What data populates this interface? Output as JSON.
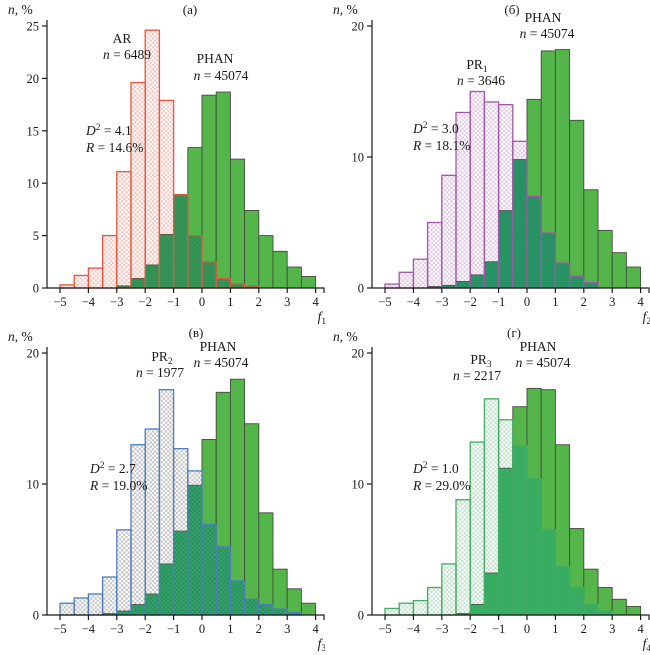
{
  "figure": {
    "background": "#ffffff"
  },
  "chart_data": [
    {
      "id": "a",
      "type": "bar",
      "panel_letter": "(a)",
      "xlabel": {
        "base": "f",
        "sub": "1"
      },
      "ylabel": {
        "italic": "n",
        "rest": ", %"
      },
      "ylim": [
        0,
        25
      ],
      "yticks": [
        0,
        5,
        10,
        15,
        20,
        25
      ],
      "xticks": [
        -5,
        -4,
        -3,
        -2,
        -1,
        0,
        1,
        2,
        3,
        4
      ],
      "bin_width": 0.5,
      "grid": false,
      "stats": {
        "d2": "4.1",
        "r": "14.6%"
      },
      "overlay": {
        "label": {
          "base": "AR",
          "sub": ""
        },
        "n": "6489",
        "border_color": "#e25740",
        "checker_color": "#e25740",
        "checker_opacity": 0.34,
        "x0": -5,
        "values": [
          0.3,
          1.2,
          1.9,
          5.0,
          11.1,
          19.6,
          24.6,
          17.9,
          8.9,
          5.0,
          2.5,
          0.9,
          0.4,
          0.2
        ]
      },
      "phan": {
        "label": "PHAN",
        "n": "45074",
        "fill": "#54b54a",
        "stroke": "#454d3c",
        "overlap_fill": "#109d58",
        "x0": -3,
        "values": [
          0.2,
          0.9,
          2.2,
          5.1,
          8.9,
          13.4,
          18.4,
          18.7,
          12.3,
          7.4,
          5.0,
          3.5,
          2.0,
          1.1
        ]
      },
      "pos": {
        "letter": [
          190,
          14
        ],
        "overlay_label": [
          [
            122,
            43
          ],
          [
            127,
            59
          ]
        ],
        "phan_label": [
          [
            215,
            63
          ],
          [
            221,
            80
          ]
        ],
        "stats": [
          [
            86,
            135
          ],
          [
            86,
            152
          ]
        ]
      }
    },
    {
      "id": "b",
      "type": "bar",
      "panel_letter": "(б)",
      "xlabel": {
        "base": "f",
        "sub": "2"
      },
      "ylabel": {
        "italic": "n",
        "rest": ", %"
      },
      "ylim": [
        0,
        20
      ],
      "yticks": [
        0,
        10,
        20
      ],
      "xticks": [
        -5,
        -4,
        -3,
        -2,
        -1,
        0,
        1,
        2,
        3,
        4
      ],
      "bin_width": 0.5,
      "grid": false,
      "stats": {
        "d2": "3.0",
        "r": "18.1%"
      },
      "overlay": {
        "label": {
          "base": "PR",
          "sub": "1"
        },
        "n": "3646",
        "border_color": "#a157a7",
        "checker_color": "#a157a7",
        "checker_opacity": 0.32,
        "x0": -5,
        "values": [
          0.3,
          1.2,
          2.2,
          5.0,
          8.6,
          13.4,
          15.0,
          14.2,
          14.0,
          11.2,
          7.0,
          4.2,
          1.9,
          0.9,
          0.4
        ]
      },
      "phan": {
        "label": "PHAN",
        "n": "45074",
        "fill": "#54b54a",
        "stroke": "#454d3c",
        "overlap_fill": "#109d58",
        "x0": -3.5,
        "values": [
          0.1,
          0.2,
          0.5,
          1.0,
          2.0,
          5.9,
          9.8,
          14.4,
          18.1,
          18.2,
          12.8,
          7.5,
          4.4,
          2.7,
          1.6
        ]
      },
      "pos": {
        "letter": [
          187,
          14
        ],
        "overlay_label": [
          [
            152,
            69
          ],
          [
            156,
            85
          ]
        ],
        "phan_label": [
          [
            218,
            22
          ],
          [
            222,
            38
          ]
        ],
        "stats": [
          [
            88,
            133
          ],
          [
            88,
            150
          ]
        ]
      }
    },
    {
      "id": "v",
      "type": "bar",
      "panel_letter": "(в)",
      "xlabel": {
        "base": "f",
        "sub": "3"
      },
      "ylabel": {
        "italic": "n",
        "rest": ", %"
      },
      "ylim": [
        0,
        20
      ],
      "yticks": [
        0,
        10,
        20
      ],
      "xticks": [
        -5,
        -4,
        -3,
        -2,
        -1,
        0,
        1,
        2,
        3,
        4
      ],
      "bin_width": 0.5,
      "grid": false,
      "stats": {
        "d2": "2.7",
        "r": "19.0%"
      },
      "overlay": {
        "label": {
          "base": "PR",
          "sub": "2"
        },
        "n": "1977",
        "border_color": "#4d7dbd",
        "checker_color": "#8c8c8c",
        "checker_opacity": 0.5,
        "x0": -5,
        "values": [
          0.9,
          1.3,
          1.6,
          2.9,
          6.5,
          13.0,
          14.2,
          17.2,
          12.7,
          11.0,
          6.9,
          5.2,
          2.6,
          1.2,
          0.8,
          0.45,
          0.2
        ]
      },
      "phan": {
        "label": "PHAN",
        "n": "45074",
        "fill": "#54b54a",
        "stroke": "#454d3c",
        "overlap_fill": "#109d58",
        "x0": -3.5,
        "values": [
          0.1,
          0.3,
          0.8,
          1.6,
          3.9,
          6.4,
          9.9,
          13.4,
          17.0,
          18.0,
          14.6,
          7.8,
          3.5,
          2.0,
          0.9
        ]
      },
      "pos": {
        "letter": [
          196,
          10
        ],
        "overlay_label": [
          [
            162,
            34
          ],
          [
            160,
            50
          ]
        ],
        "phan_label": [
          [
            218,
            24
          ],
          [
            221,
            40
          ]
        ],
        "stats": [
          [
            90,
            146
          ],
          [
            90,
            163
          ]
        ]
      }
    },
    {
      "id": "g",
      "type": "bar",
      "panel_letter": "(г)",
      "xlabel": {
        "base": "f",
        "sub": "4"
      },
      "ylabel": {
        "italic": "n",
        "rest": ", %"
      },
      "ylim": [
        0,
        20
      ],
      "yticks": [
        0,
        10,
        20
      ],
      "xticks": [
        -5,
        -4,
        -3,
        -2,
        -1,
        0,
        1,
        2,
        3,
        4
      ],
      "bin_width": 0.5,
      "grid": false,
      "stats": {
        "d2": "1.0",
        "r": "29.0%"
      },
      "overlay": {
        "label": {
          "base": "PR",
          "sub": "3"
        },
        "n": "2217",
        "border_color": "#43ab63",
        "checker_color": "#43ab63",
        "checker_opacity": 0.33,
        "x0": -5,
        "values": [
          0.5,
          0.9,
          1.1,
          2.1,
          3.9,
          8.8,
          13.2,
          16.5,
          14.9,
          12.9,
          10.4,
          6.5,
          3.7,
          2.1,
          0.8,
          0.3
        ]
      },
      "phan": {
        "label": "PHAN",
        "n": "45074",
        "fill": "#54b54a",
        "stroke": "#454d3c",
        "overlap_fill": "#36ad62",
        "x0": -2.5,
        "values": [
          0.1,
          0.8,
          3.2,
          11.2,
          15.9,
          17.3,
          17.2,
          13.0,
          6.6,
          3.5,
          2.1,
          1.2,
          0.65
        ]
      },
      "pos": {
        "letter": [
          189,
          10
        ],
        "overlay_label": [
          [
            156,
            37
          ],
          [
            152,
            53
          ]
        ],
        "phan_label": [
          [
            213,
            24
          ],
          [
            218,
            40
          ]
        ],
        "stats": [
          [
            88,
            146
          ],
          [
            88,
            163
          ]
        ]
      }
    }
  ]
}
